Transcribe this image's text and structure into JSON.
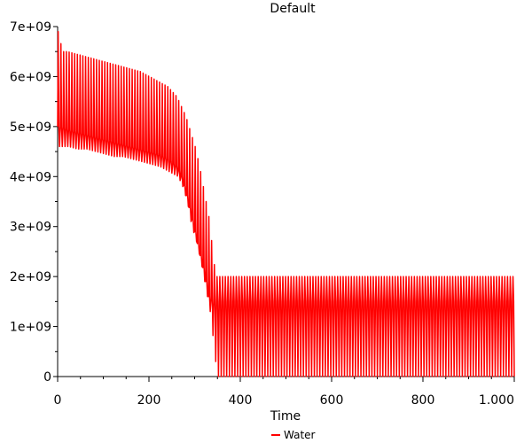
{
  "chart_data": {
    "type": "line",
    "title": "Default",
    "xlabel": "Time",
    "ylabel": "",
    "xlim": [
      0,
      1000
    ],
    "ylim": [
      0,
      7000000000
    ],
    "x_ticks": [
      0,
      200,
      400,
      600,
      800,
      1000
    ],
    "x_tick_labels": [
      "0",
      "200",
      "400",
      "600",
      "800",
      "1.000"
    ],
    "y_ticks": [
      0,
      1000000000,
      2000000000,
      3000000000,
      4000000000,
      5000000000,
      6000000000,
      7000000000
    ],
    "y_tick_labels": [
      "0",
      "1e+09",
      "2e+09",
      "3e+09",
      "4e+09",
      "5e+09",
      "6e+09",
      "7e+09"
    ],
    "grid": false,
    "legend_position": "bottom-center",
    "series": [
      {
        "name": "Water",
        "color": "#ff0000",
        "oscillating": true,
        "x": [
          0,
          10,
          20,
          40,
          60,
          80,
          100,
          120,
          140,
          160,
          180,
          200,
          220,
          240,
          260,
          270,
          280,
          290,
          300,
          310,
          320,
          330,
          340,
          345,
          350,
          400,
          500,
          600,
          700,
          800,
          900,
          1000
        ],
        "peak": [
          6900000000,
          6500000000,
          6500000000,
          6450000000,
          6400000000,
          6350000000,
          6300000000,
          6250000000,
          6200000000,
          6150000000,
          6100000000,
          6000000000,
          5900000000,
          5800000000,
          5600000000,
          5400000000,
          5200000000,
          4900000000,
          4600000000,
          4200000000,
          3700000000,
          3200000000,
          2400000000,
          2000000000,
          2000000000,
          2000000000,
          2000000000,
          2000000000,
          2000000000,
          2000000000,
          2000000000,
          2000000000
        ],
        "trough": [
          4600000000,
          4600000000,
          4600000000,
          4550000000,
          4550000000,
          4500000000,
          4450000000,
          4400000000,
          4400000000,
          4350000000,
          4300000000,
          4250000000,
          4200000000,
          4100000000,
          4000000000,
          3800000000,
          3500000000,
          3000000000,
          2700000000,
          2300000000,
          1800000000,
          1300000000,
          500000000,
          0,
          0,
          0,
          0,
          0,
          0,
          0,
          0,
          0
        ],
        "mid": [
          5000000000,
          5000000000,
          4950000000,
          4900000000,
          4850000000,
          4800000000,
          4750000000,
          4700000000,
          4650000000,
          4600000000,
          4550000000,
          4500000000,
          4450000000,
          4350000000,
          4200000000,
          4000000000,
          3700000000,
          3300000000,
          2900000000,
          2500000000,
          2100000000,
          1600000000,
          1500000000,
          1500000000,
          1500000000,
          1500000000,
          1500000000,
          1500000000,
          1500000000,
          1500000000,
          1500000000,
          1500000000
        ],
        "period": 6
      }
    ]
  }
}
